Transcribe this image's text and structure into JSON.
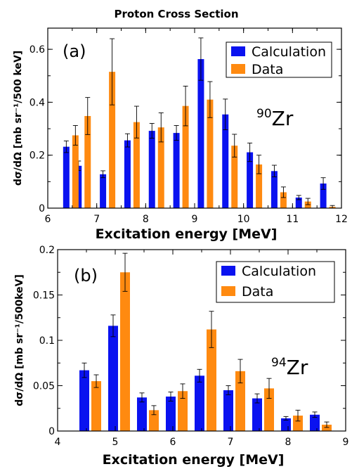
{
  "figure": {
    "title": "Proton Cross Section"
  },
  "colors": {
    "calculation": "#0a12f0",
    "data": "#ff8a10"
  },
  "chart_data": [
    {
      "type": "bar",
      "panel_label": "(a)",
      "isotope": {
        "mass": "90",
        "symbol": "Zr"
      },
      "xlabel": "Excitation energy [MeV]",
      "ylabel": "dσ/dΩ [mb sr⁻¹/500 keV]",
      "xlim": [
        6,
        12
      ],
      "ylim": [
        0,
        0.68
      ],
      "xticks": [
        6,
        7,
        8,
        9,
        10,
        11,
        12
      ],
      "yticks": [
        0,
        0.2,
        0.4,
        0.6
      ],
      "ytick_labels": [
        "0",
        "0.2",
        "0.4",
        "0.6"
      ],
      "legend_position": "top-right",
      "x": [
        6.5,
        6.75,
        7.25,
        7.75,
        8.25,
        8.75,
        9.25,
        9.75,
        10.25,
        10.75,
        11.25,
        11.75
      ],
      "series": [
        {
          "name": "Calculation",
          "values": [
            0.232,
            0.16,
            0.128,
            0.256,
            0.292,
            0.284,
            0.563,
            0.354,
            0.211,
            0.14,
            0.04,
            0.093
          ],
          "errors": [
            0.022,
            0.018,
            0.013,
            0.025,
            0.028,
            0.028,
            0.08,
            0.058,
            0.035,
            0.022,
            0.008,
            0.022
          ]
        },
        {
          "name": "Data",
          "values": [
            0.275,
            0.348,
            0.515,
            0.325,
            0.305,
            0.386,
            0.41,
            0.236,
            0.165,
            0.06,
            0.025,
            0.005
          ],
          "errors": [
            0.037,
            0.07,
            0.125,
            0.06,
            0.055,
            0.075,
            0.068,
            0.043,
            0.035,
            0.02,
            0.012,
            0.005
          ]
        }
      ]
    },
    {
      "type": "bar",
      "panel_label": "(b)",
      "isotope": {
        "mass": "94",
        "symbol": "Zr"
      },
      "xlabel": "Excitation energy [MeV]",
      "ylabel": "dσ/dΩ [mb sr⁻¹/500keV]",
      "xlim": [
        4,
        9
      ],
      "ylim": [
        0,
        0.2
      ],
      "xticks": [
        4,
        5,
        6,
        7,
        8,
        9
      ],
      "yticks": [
        0,
        0.05,
        0.1,
        0.15,
        0.2
      ],
      "ytick_labels": [
        "0",
        "0.05",
        "0.1",
        "0.15",
        "0.2"
      ],
      "legend_position": "top-right",
      "x": [
        4.5,
        5.0,
        5.5,
        6.0,
        6.5,
        7.0,
        7.5,
        8.0,
        8.5
      ],
      "series": [
        {
          "name": "Calculation",
          "values": [
            0.067,
            0.116,
            0.037,
            0.038,
            0.061,
            0.045,
            0.036,
            0.014,
            0.018
          ],
          "errors": [
            0.008,
            0.012,
            0.005,
            0.005,
            0.007,
            0.005,
            0.005,
            0.002,
            0.003
          ]
        },
        {
          "name": "Data",
          "values": [
            0.055,
            0.175,
            0.023,
            0.044,
            0.112,
            0.066,
            0.047,
            0.017,
            0.007
          ],
          "errors": [
            0.007,
            0.021,
            0.005,
            0.008,
            0.02,
            0.013,
            0.011,
            0.006,
            0.003
          ]
        }
      ]
    }
  ]
}
